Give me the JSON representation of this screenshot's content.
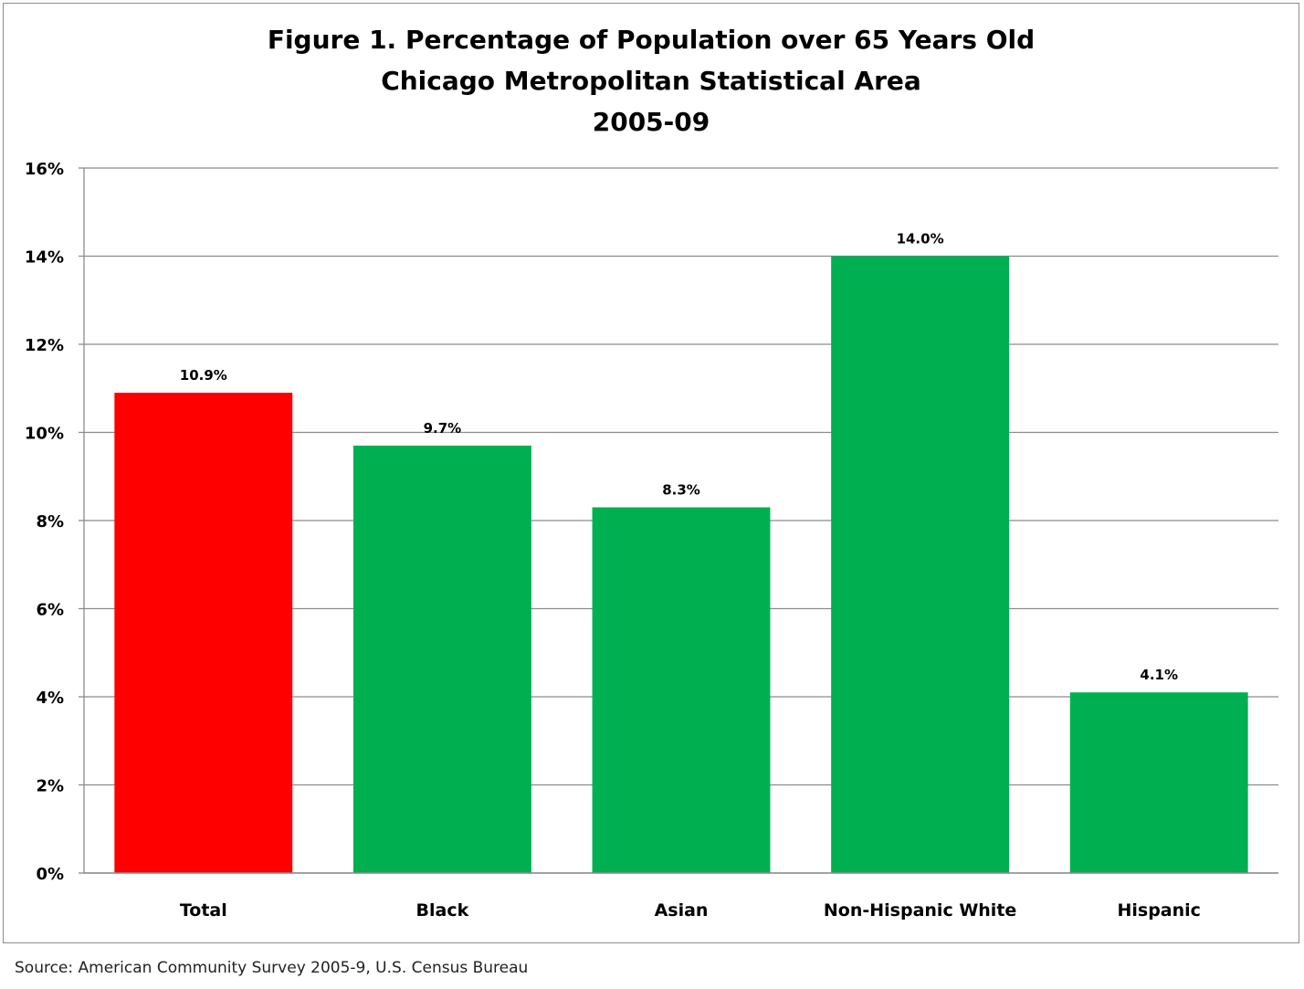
{
  "chart_data": {
    "type": "bar",
    "title_lines": [
      "Figure 1. Percentage of Population over 65 Years Old",
      "Chicago Metropolitan Statistical Area",
      "2005-09"
    ],
    "categories": [
      "Total",
      "Black",
      "Asian",
      "Non-Hispanic White",
      "Hispanic"
    ],
    "values": [
      10.9,
      9.7,
      8.3,
      14.0,
      4.1
    ],
    "data_labels": [
      "10.9%",
      "9.7%",
      "8.3%",
      "14.0%",
      "4.1%"
    ],
    "bar_colors": [
      "#ff0000",
      "#00b050",
      "#00b050",
      "#00b050",
      "#00b050"
    ],
    "ylim": [
      0,
      16
    ],
    "yticks": [
      0,
      2,
      4,
      6,
      8,
      10,
      12,
      14,
      16
    ],
    "ytick_labels": [
      "0%",
      "2%",
      "4%",
      "6%",
      "8%",
      "10%",
      "12%",
      "14%",
      "16%"
    ],
    "grid": true,
    "legend": "none",
    "xlabel": "",
    "ylabel": ""
  },
  "source": "Source: American Community Survey 2005-9, U.S. Census Bureau"
}
